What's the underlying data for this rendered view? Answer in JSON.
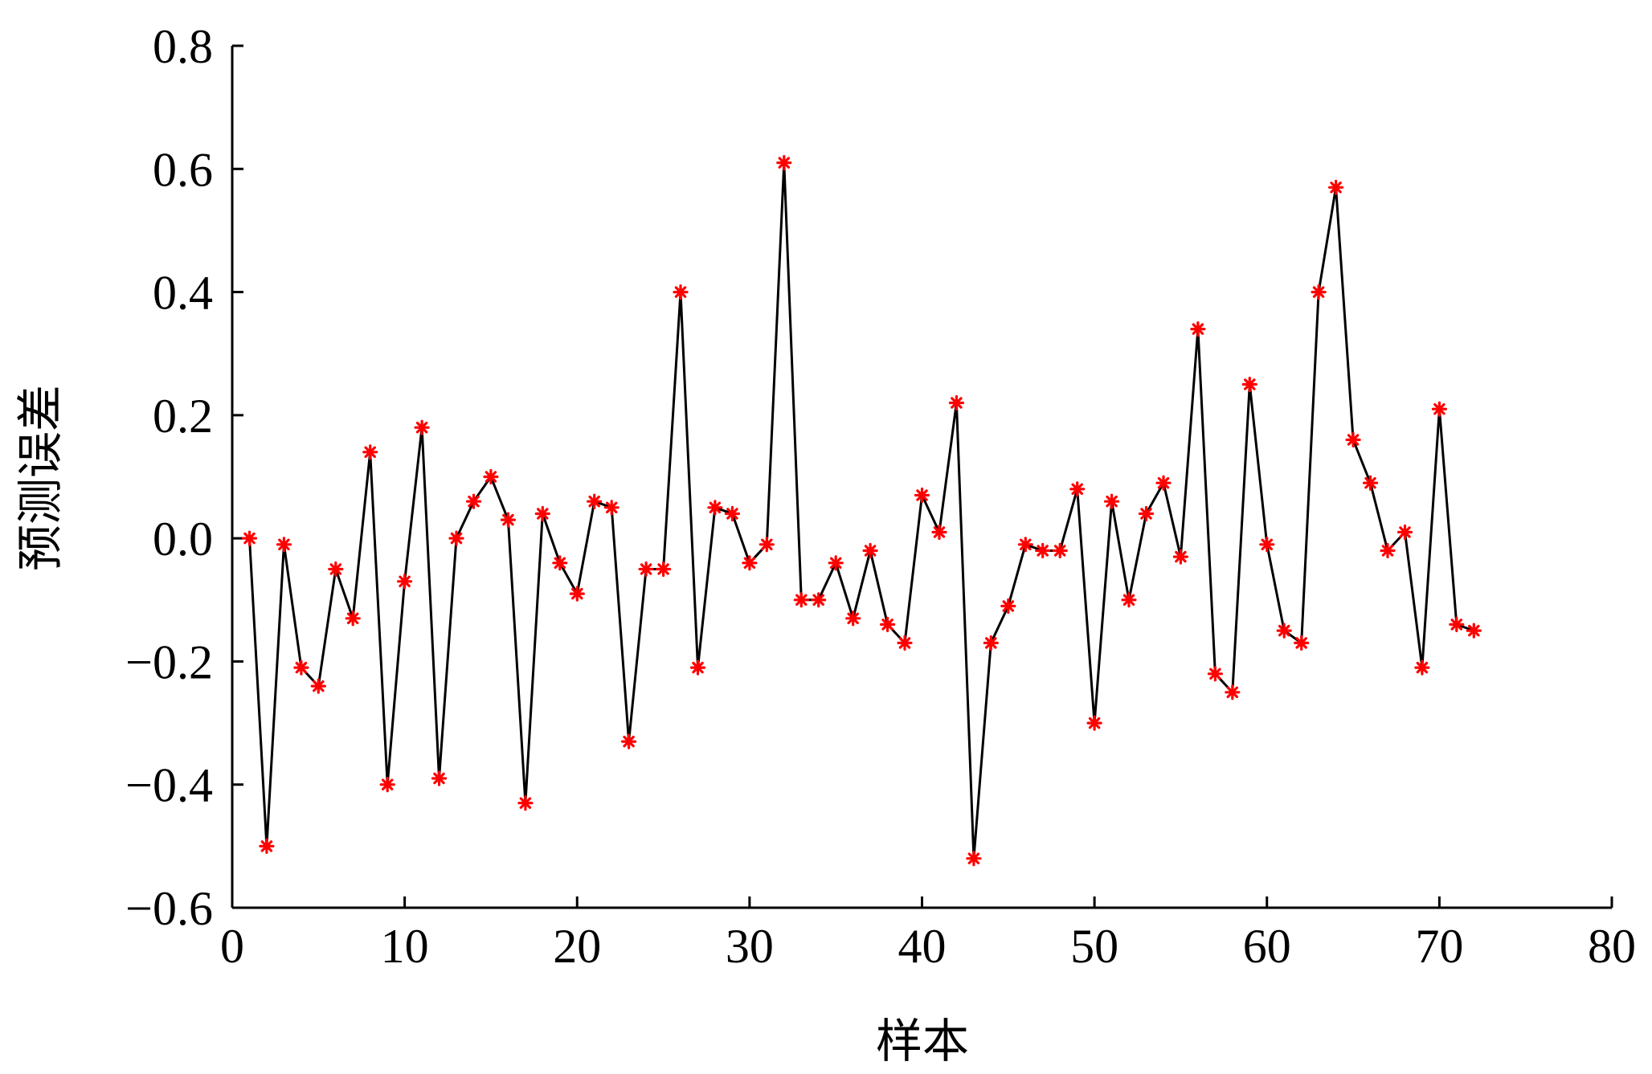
{
  "chart_data": {
    "type": "line",
    "title": "",
    "xlabel": "样本",
    "ylabel": "预测误差",
    "xlim": [
      0,
      80
    ],
    "ylim": [
      -0.6,
      0.8
    ],
    "xticks": [
      0,
      10,
      20,
      30,
      40,
      50,
      60,
      70,
      80
    ],
    "xtick_labels": [
      "0",
      "10",
      "20",
      "30",
      "40",
      "50",
      "60",
      "70",
      "80"
    ],
    "yticks": [
      -0.6,
      -0.4,
      -0.2,
      0.0,
      0.2,
      0.4,
      0.6,
      0.8
    ],
    "ytick_labels": [
      "−0.6",
      "−0.4",
      "−0.2",
      "0.0",
      "0.2",
      "0.4",
      "0.6",
      "0.8"
    ],
    "grid": false,
    "legend": "none",
    "line_color": "#000000",
    "marker_color": "#ff0000",
    "marker": "asterisk",
    "series": [
      {
        "x": [
          1,
          2,
          3,
          4,
          5,
          6,
          7,
          8,
          9,
          10,
          11,
          12,
          13,
          14,
          15,
          16,
          17,
          18,
          19,
          20,
          21,
          22,
          23,
          24,
          25,
          26,
          27,
          28,
          29,
          30,
          31,
          32,
          33,
          34,
          35,
          36,
          37,
          38,
          39,
          40,
          41,
          42,
          43,
          44,
          45,
          46,
          47,
          48,
          49,
          50,
          51,
          52,
          53,
          54,
          55,
          56,
          57,
          58,
          59,
          60,
          61,
          62,
          63,
          64,
          65,
          66,
          67,
          68,
          69,
          70,
          71,
          72
        ],
        "values": [
          0.0,
          -0.5,
          -0.01,
          -0.21,
          -0.24,
          -0.05,
          -0.13,
          0.14,
          -0.4,
          -0.07,
          0.18,
          -0.39,
          0.0,
          0.06,
          0.1,
          0.03,
          -0.43,
          0.04,
          -0.04,
          -0.09,
          0.06,
          0.05,
          -0.33,
          -0.05,
          -0.05,
          0.4,
          -0.21,
          0.05,
          0.04,
          -0.04,
          -0.01,
          0.61,
          -0.1,
          -0.1,
          -0.04,
          -0.13,
          -0.02,
          -0.14,
          -0.17,
          0.07,
          0.01,
          0.22,
          -0.52,
          -0.17,
          -0.11,
          -0.01,
          -0.02,
          -0.02,
          0.08,
          -0.3,
          0.06,
          -0.1,
          0.04,
          0.09,
          -0.03,
          0.34,
          -0.22,
          -0.25,
          0.25,
          -0.01,
          -0.15,
          -0.17,
          0.4,
          0.57,
          0.16,
          0.09,
          -0.02,
          0.01,
          -0.21,
          0.21,
          -0.14,
          -0.15
        ]
      }
    ]
  }
}
